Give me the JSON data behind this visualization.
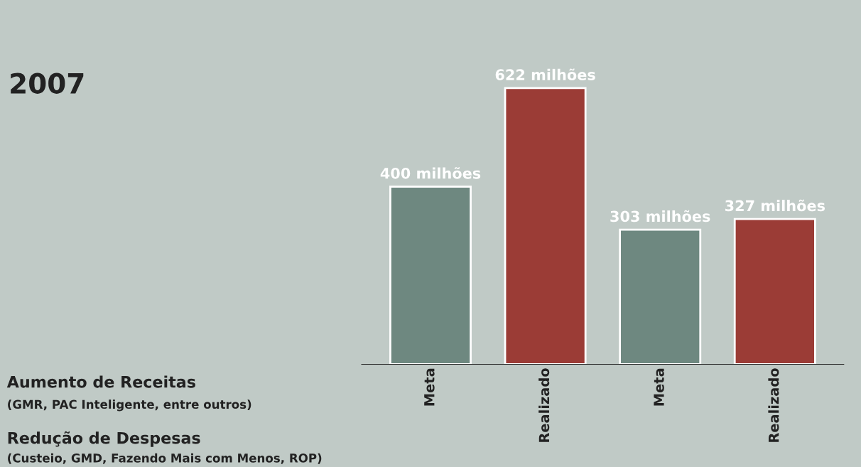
{
  "chart_data": {
    "type": "bar",
    "title": "2007",
    "categories": [
      "Meta",
      "Realizado",
      "Meta",
      "Realizado"
    ],
    "values": [
      400,
      622,
      303,
      327
    ],
    "colors": [
      "#6e8880",
      "#9b3c36",
      "#6e8880",
      "#9b3c36"
    ],
    "value_labels": [
      "400 milhões",
      "622 milhões",
      "303 milhões",
      "327 milhões"
    ],
    "annotations": [
      "Aumento de Receitas",
      "(GMR, PAC Inteligente, entre outros)",
      "Redução de Despesas",
      "(Custeio, GMD, Fazendo Mais com Menos, ROP)"
    ],
    "grid": false,
    "legend": false
  }
}
